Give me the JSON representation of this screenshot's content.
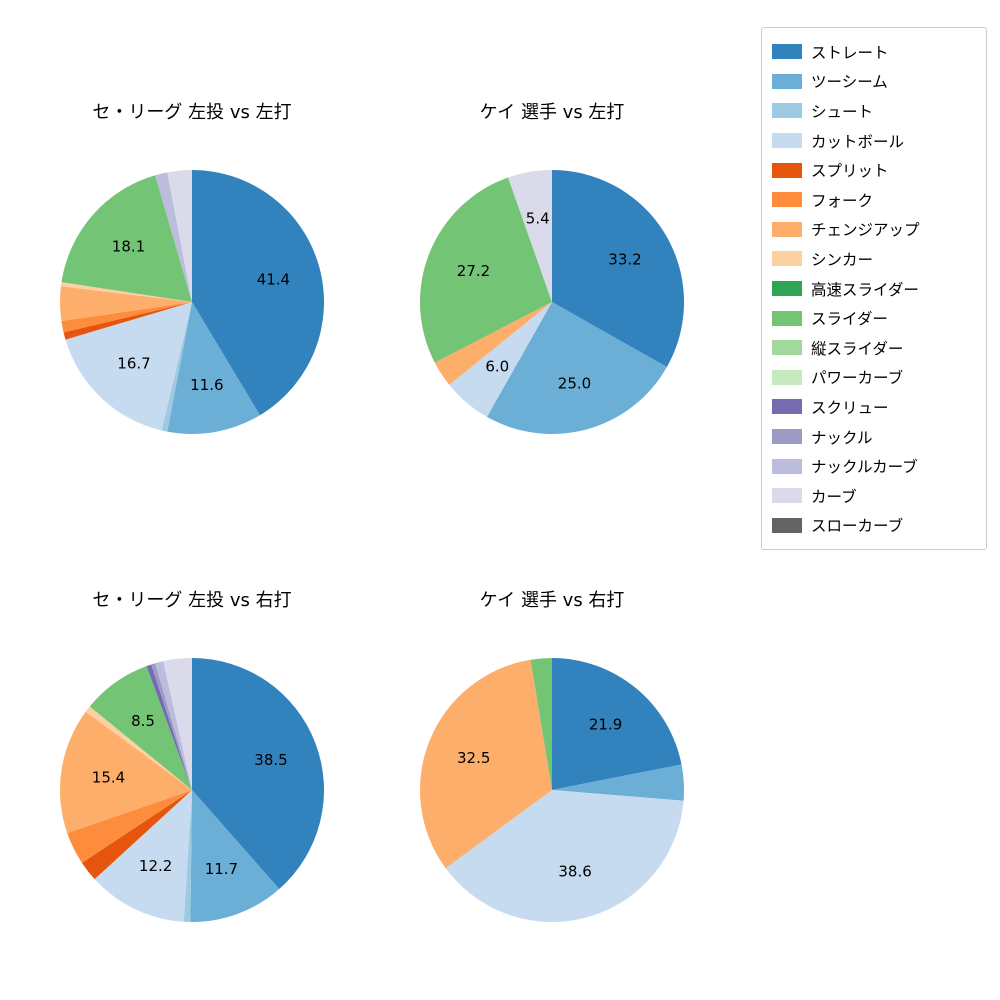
{
  "figure": {
    "background": "#ffffff"
  },
  "legend": {
    "position": "top-right",
    "items": [
      {
        "label": "ストレート",
        "color": "#3182bd"
      },
      {
        "label": "ツーシーム",
        "color": "#6baed6"
      },
      {
        "label": "シュート",
        "color": "#9ecae1"
      },
      {
        "label": "カットボール",
        "color": "#c6dbef"
      },
      {
        "label": "スプリット",
        "color": "#e6550d"
      },
      {
        "label": "フォーク",
        "color": "#fd8d3c"
      },
      {
        "label": "チェンジアップ",
        "color": "#fdae6b"
      },
      {
        "label": "シンカー",
        "color": "#fdd0a2"
      },
      {
        "label": "高速スライダー",
        "color": "#31a354"
      },
      {
        "label": "スライダー",
        "color": "#74c476"
      },
      {
        "label": "縦スライダー",
        "color": "#a1d99b"
      },
      {
        "label": "パワーカーブ",
        "color": "#c7e9c0"
      },
      {
        "label": "スクリュー",
        "color": "#756bb1"
      },
      {
        "label": "ナックル",
        "color": "#9e9ac8"
      },
      {
        "label": "ナックルカーブ",
        "color": "#bcbddc"
      },
      {
        "label": "カーブ",
        "color": "#dadaeb"
      },
      {
        "label": "スローカーブ",
        "color": "#636363"
      }
    ]
  },
  "chart_data": [
    {
      "type": "pie",
      "title": "セ・リーグ 左投 vs 左打",
      "start_angle": "top",
      "direction": "clockwise",
      "slices": [
        {
          "label": "ストレート",
          "value": 41.4,
          "pct_label": "41.4"
        },
        {
          "label": "ツーシーム",
          "value": 11.6,
          "pct_label": "11.6"
        },
        {
          "label": "シュート",
          "value": 0.7
        },
        {
          "label": "カットボール",
          "value": 16.7,
          "pct_label": "16.7"
        },
        {
          "label": "スプリット",
          "value": 0.9
        },
        {
          "label": "フォーク",
          "value": 1.4
        },
        {
          "label": "チェンジアップ",
          "value": 4.2
        },
        {
          "label": "シンカー",
          "value": 0.5
        },
        {
          "label": "スライダー",
          "value": 18.1,
          "pct_label": "18.1"
        },
        {
          "label": "ナックルカーブ",
          "value": 1.5
        },
        {
          "label": "カーブ",
          "value": 3.0
        }
      ]
    },
    {
      "type": "pie",
      "title": "ケイ 選手 vs 左打",
      "start_angle": "top",
      "direction": "clockwise",
      "slices": [
        {
          "label": "ストレート",
          "value": 33.2,
          "pct_label": "33.2"
        },
        {
          "label": "ツーシーム",
          "value": 25.0,
          "pct_label": "25.0"
        },
        {
          "label": "カットボール",
          "value": 6.0,
          "pct_label": "6.0"
        },
        {
          "label": "チェンジアップ",
          "value": 3.2
        },
        {
          "label": "スライダー",
          "value": 27.2,
          "pct_label": "27.2"
        },
        {
          "label": "カーブ",
          "value": 5.4,
          "pct_label": "5.4"
        }
      ]
    },
    {
      "type": "pie",
      "title": "セ・リーグ 左投 vs 右打",
      "start_angle": "top",
      "direction": "clockwise",
      "slices": [
        {
          "label": "ストレート",
          "value": 38.5,
          "pct_label": "38.5"
        },
        {
          "label": "ツーシーム",
          "value": 11.7,
          "pct_label": "11.7"
        },
        {
          "label": "シュート",
          "value": 0.8
        },
        {
          "label": "カットボール",
          "value": 12.2,
          "pct_label": "12.2"
        },
        {
          "label": "スプリット",
          "value": 2.5
        },
        {
          "label": "フォーク",
          "value": 4.0
        },
        {
          "label": "チェンジアップ",
          "value": 15.4,
          "pct_label": "15.4"
        },
        {
          "label": "シンカー",
          "value": 0.8
        },
        {
          "label": "スライダー",
          "value": 8.5,
          "pct_label": "8.5"
        },
        {
          "label": "スクリュー",
          "value": 0.6
        },
        {
          "label": "ナックル",
          "value": 0.5
        },
        {
          "label": "ナックルカーブ",
          "value": 1.0
        },
        {
          "label": "カーブ",
          "value": 3.5
        }
      ]
    },
    {
      "type": "pie",
      "title": "ケイ 選手 vs 右打",
      "start_angle": "top",
      "direction": "clockwise",
      "slices": [
        {
          "label": "ストレート",
          "value": 21.9,
          "pct_label": "21.9"
        },
        {
          "label": "ツーシーム",
          "value": 4.4
        },
        {
          "label": "カットボール",
          "value": 38.6,
          "pct_label": "38.6"
        },
        {
          "label": "チェンジアップ",
          "value": 32.5,
          "pct_label": "32.5"
        },
        {
          "label": "スライダー",
          "value": 2.6
        }
      ]
    }
  ]
}
